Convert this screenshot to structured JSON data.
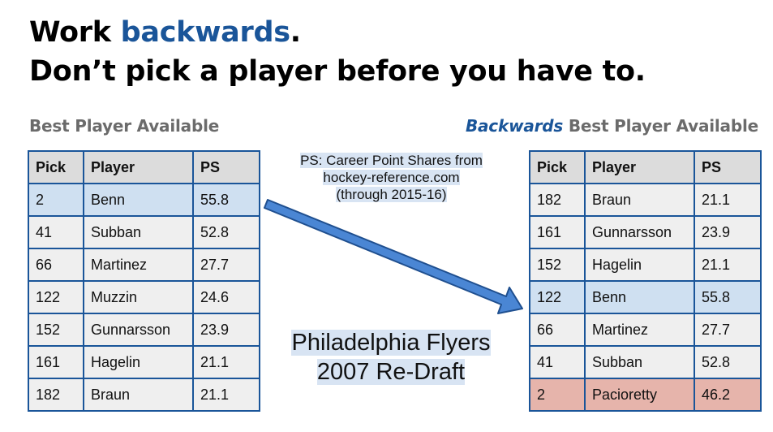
{
  "title": {
    "line1_pre": "Work ",
    "line1_accent": "backwards",
    "line1_post": ".",
    "line2": "Don’t pick a player before you have to."
  },
  "left": {
    "heading": "Best Player Available",
    "columns": [
      "Pick",
      "Player",
      "PS"
    ],
    "rows": [
      [
        "2",
        "Benn",
        "55.8"
      ],
      [
        "41",
        "Subban",
        "52.8"
      ],
      [
        "66",
        "Martinez",
        "27.7"
      ],
      [
        "122",
        "Muzzin",
        "24.6"
      ],
      [
        "152",
        "Gunnarsson",
        "23.9"
      ],
      [
        "161",
        "Hagelin",
        "21.1"
      ],
      [
        "182",
        "Braun",
        "21.1"
      ]
    ]
  },
  "right": {
    "heading_accent": "Backwards",
    "heading_rest": " Best Player Available",
    "columns": [
      "Pick",
      "Player",
      "PS"
    ],
    "rows": [
      [
        "182",
        "Braun",
        "21.1"
      ],
      [
        "161",
        "Gunnarsson",
        "23.9"
      ],
      [
        "152",
        "Hagelin",
        "21.1"
      ],
      [
        "122",
        "Benn",
        "55.8"
      ],
      [
        "66",
        "Martinez",
        "27.7"
      ],
      [
        "41",
        "Subban",
        "52.8"
      ],
      [
        "2",
        "Pacioretty",
        "46.2"
      ]
    ]
  },
  "ps_note": [
    "PS: Career Point Shares from",
    "hockey-reference.com",
    "(through 2015-16)"
  ],
  "caption": [
    "Philadelphia Flyers",
    "2007 Re-Draft"
  ],
  "colors": {
    "accent": "#1a5599",
    "highlight_blue": "#cfe0f1",
    "highlight_red": "#e6b4ab",
    "arrow_fill": "#4a86d4"
  }
}
